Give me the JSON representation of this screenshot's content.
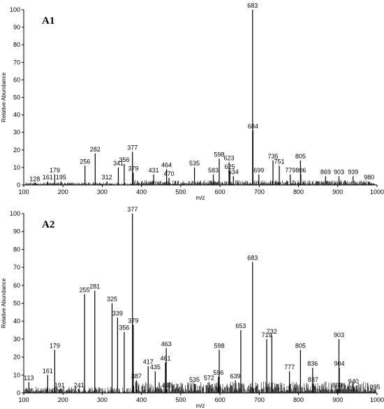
{
  "chart_data": [
    {
      "type": "bar",
      "title": "A1",
      "xlabel": "m/z",
      "ylabel": "Relative Abundance",
      "xlim": [
        100,
        1000
      ],
      "ylim": [
        0,
        100
      ],
      "xticks": [
        100,
        200,
        300,
        400,
        500,
        600,
        700,
        800,
        900,
        1000
      ],
      "yticks": [
        0,
        10,
        20,
        30,
        40,
        50,
        60,
        70,
        80,
        90,
        100
      ],
      "labeled_peaks": [
        {
          "x": 128,
          "y": 1,
          "label": "128"
        },
        {
          "x": 161,
          "y": 2,
          "label": "161"
        },
        {
          "x": 179,
          "y": 6,
          "label": "179"
        },
        {
          "x": 195,
          "y": 2,
          "label": "195"
        },
        {
          "x": 256,
          "y": 11,
          "label": "256"
        },
        {
          "x": 282,
          "y": 18,
          "label": "282"
        },
        {
          "x": 312,
          "y": 2,
          "label": "312"
        },
        {
          "x": 341,
          "y": 10,
          "label": "341"
        },
        {
          "x": 356,
          "y": 12,
          "label": "356"
        },
        {
          "x": 377,
          "y": 19,
          "label": "377"
        },
        {
          "x": 379,
          "y": 7,
          "label": "379"
        },
        {
          "x": 431,
          "y": 6,
          "label": "431"
        },
        {
          "x": 464,
          "y": 9,
          "label": "464"
        },
        {
          "x": 470,
          "y": 4,
          "label": "470"
        },
        {
          "x": 535,
          "y": 10,
          "label": "535"
        },
        {
          "x": 583,
          "y": 6,
          "label": "583"
        },
        {
          "x": 598,
          "y": 15,
          "label": "598"
        },
        {
          "x": 623,
          "y": 13,
          "label": "623"
        },
        {
          "x": 625,
          "y": 8,
          "label": "625"
        },
        {
          "x": 634,
          "y": 5,
          "label": "634"
        },
        {
          "x": 683,
          "y": 100,
          "label": "683"
        },
        {
          "x": 684,
          "y": 31,
          "label": "684"
        },
        {
          "x": 699,
          "y": 6,
          "label": "699"
        },
        {
          "x": 735,
          "y": 14,
          "label": "735"
        },
        {
          "x": 751,
          "y": 11,
          "label": "751"
        },
        {
          "x": 779,
          "y": 6,
          "label": "779"
        },
        {
          "x": 805,
          "y": 14,
          "label": "805"
        },
        {
          "x": 806,
          "y": 6,
          "label": "806"
        },
        {
          "x": 869,
          "y": 5,
          "label": "869"
        },
        {
          "x": 903,
          "y": 5,
          "label": "903"
        },
        {
          "x": 939,
          "y": 5,
          "label": "939"
        },
        {
          "x": 980,
          "y": 2,
          "label": "980"
        }
      ]
    },
    {
      "type": "bar",
      "title": "A2",
      "xlabel": "m/z",
      "ylabel": "Relative Abundance",
      "xlim": [
        100,
        1000
      ],
      "ylim": [
        0,
        100
      ],
      "xticks": [
        100,
        200,
        300,
        400,
        500,
        600,
        700,
        800,
        900,
        1000
      ],
      "yticks": [
        0,
        10,
        20,
        30,
        40,
        50,
        60,
        70,
        80,
        90,
        100
      ],
      "labeled_peaks": [
        {
          "x": 113,
          "y": 6,
          "label": "113"
        },
        {
          "x": 161,
          "y": 10,
          "label": "161"
        },
        {
          "x": 179,
          "y": 24,
          "label": "179"
        },
        {
          "x": 191,
          "y": 2,
          "label": "191"
        },
        {
          "x": 241,
          "y": 2,
          "label": "241"
        },
        {
          "x": 255,
          "y": 55,
          "label": "255"
        },
        {
          "x": 281,
          "y": 57,
          "label": "281"
        },
        {
          "x": 325,
          "y": 50,
          "label": "325"
        },
        {
          "x": 339,
          "y": 42,
          "label": "339"
        },
        {
          "x": 356,
          "y": 34,
          "label": "356"
        },
        {
          "x": 377,
          "y": 100,
          "label": "377"
        },
        {
          "x": 379,
          "y": 38,
          "label": "379"
        },
        {
          "x": 387,
          "y": 7,
          "label": "387"
        },
        {
          "x": 417,
          "y": 15,
          "label": "417"
        },
        {
          "x": 435,
          "y": 12,
          "label": "435"
        },
        {
          "x": 461,
          "y": 17,
          "label": "461"
        },
        {
          "x": 463,
          "y": 25,
          "label": "463"
        },
        {
          "x": 465,
          "y": 2,
          "label": "465"
        },
        {
          "x": 535,
          "y": 5,
          "label": "535"
        },
        {
          "x": 572,
          "y": 6,
          "label": "572"
        },
        {
          "x": 596,
          "y": 9,
          "label": "596"
        },
        {
          "x": 598,
          "y": 24,
          "label": "598"
        },
        {
          "x": 639,
          "y": 7,
          "label": "639"
        },
        {
          "x": 653,
          "y": 35,
          "label": "653"
        },
        {
          "x": 683,
          "y": 73,
          "label": "683"
        },
        {
          "x": 719,
          "y": 30,
          "label": "719"
        },
        {
          "x": 732,
          "y": 32,
          "label": "732"
        },
        {
          "x": 777,
          "y": 12,
          "label": "777"
        },
        {
          "x": 805,
          "y": 24,
          "label": "805"
        },
        {
          "x": 836,
          "y": 14,
          "label": "836"
        },
        {
          "x": 837,
          "y": 5,
          "label": "837"
        },
        {
          "x": 899,
          "y": 2,
          "label": "899"
        },
        {
          "x": 903,
          "y": 30,
          "label": "903"
        },
        {
          "x": 904,
          "y": 14,
          "label": "904"
        },
        {
          "x": 940,
          "y": 4,
          "label": "940"
        },
        {
          "x": 995,
          "y": 1,
          "label": "995"
        }
      ]
    }
  ]
}
